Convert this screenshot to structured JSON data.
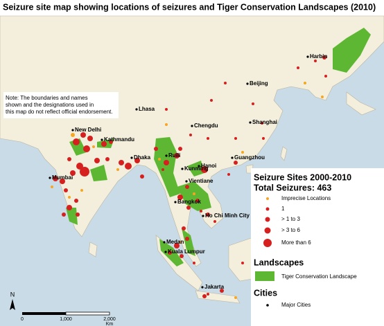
{
  "title": "Seizure site map showing locations of seizures and Tiger Conservation Landscapes (2010)",
  "note": [
    "Note: The boundaries and names",
    "shown and the designations used in",
    "this map do not reflect official endorsement."
  ],
  "cities": [
    "Harbin",
    "Beijing",
    "Shanghai",
    "Chengdu",
    "Lhasa",
    "New Delhi",
    "Kathmandu",
    "Dhaka",
    "Ruili",
    "Kunming",
    "Guangzhou",
    "Hanoi",
    "Vientiane",
    "Mumbai",
    "Bangkok",
    "Ho Chi Minh City",
    "Medan",
    "Kuala Lumpur",
    "Jakarta"
  ],
  "legend": {
    "title": "Seizure Sites 2000-2010",
    "total": "Total Seizures: 463",
    "sites": [
      "Imprecise Locations",
      "1",
      "> 1 to 3",
      "> 3 to 6",
      "More than 6"
    ],
    "landscapes_title": "Landscapes",
    "landscape_item": "Tiger Conservation Landscape",
    "cities_title": "Cities",
    "cities_item": "Major Cities"
  },
  "scale": {
    "labels": [
      "0",
      "1,000",
      "2,000"
    ],
    "unit": "Km"
  },
  "north": "N"
}
